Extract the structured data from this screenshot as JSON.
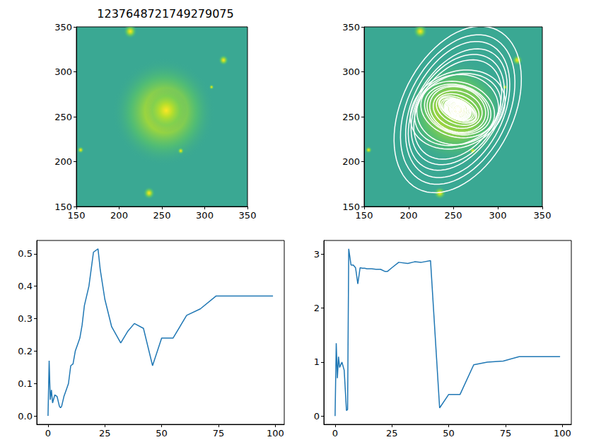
{
  "chart_data": [
    {
      "type": "image",
      "title": "1237648721749279075",
      "xlim": [
        150,
        350
      ],
      "ylim": [
        150,
        350
      ],
      "xticks": [
        150,
        200,
        250,
        300,
        350
      ],
      "yticks": [
        150,
        200,
        250,
        300,
        350
      ],
      "sources": {
        "x": [
          252,
          255,
          213,
          235,
          322,
          155,
          272,
          308
        ],
        "y": [
          255,
          257,
          345,
          165,
          313,
          213,
          212,
          283
        ],
        "radius": [
          60,
          25,
          8,
          7,
          6,
          4,
          4,
          3
        ]
      }
    },
    {
      "type": "image_contours",
      "xlim": [
        150,
        350
      ],
      "ylim": [
        150,
        350
      ],
      "xticks": [
        150,
        200,
        250,
        300,
        350
      ],
      "yticks": [
        150,
        200,
        250,
        300,
        350
      ],
      "sources": {
        "x": [
          252,
          255,
          213,
          235,
          322,
          155,
          272,
          308
        ],
        "y": [
          255,
          257,
          345,
          165,
          313,
          213,
          212,
          283
        ],
        "radius": [
          60,
          25,
          8,
          7,
          6,
          4,
          4,
          3
        ]
      },
      "contours": {
        "x0": 255,
        "y0": 258,
        "sma": [
          0,
          0.5,
          1,
          1.5,
          2,
          3,
          4,
          5,
          5.5,
          6,
          7,
          8,
          9,
          10,
          11,
          12,
          13,
          14,
          15,
          16,
          18,
          20,
          22,
          23,
          25,
          28,
          32,
          35,
          38,
          42,
          46,
          50,
          55,
          61,
          67,
          74,
          81,
          89,
          99
        ],
        "eps": [
          0,
          0.17,
          0.05,
          0.08,
          0.04,
          0.065,
          0.06,
          0.03,
          0.025,
          0.03,
          0.06,
          0.08,
          0.1,
          0.155,
          0.16,
          0.2,
          0.22,
          0.24,
          0.28,
          0.34,
          0.4,
          0.505,
          0.515,
          0.45,
          0.36,
          0.275,
          0.225,
          0.26,
          0.285,
          0.27,
          0.155,
          0.24,
          0.24,
          0.31,
          0.33,
          0.37,
          0.37,
          0.37,
          0.37
        ],
        "pa": [
          0,
          1.35,
          0.7,
          1.1,
          0.9,
          1.0,
          0.85,
          0.1,
          0.12,
          3.1,
          2.8,
          2.8,
          2.75,
          2.45,
          2.75,
          2.74,
          2.74,
          2.73,
          2.73,
          2.73,
          2.72,
          2.72,
          2.68,
          2.68,
          2.75,
          2.85,
          2.83,
          2.86,
          2.85,
          2.88,
          0.15,
          0.4,
          0.4,
          0.95,
          1.0,
          1.02,
          1.1,
          1.1,
          1.1
        ]
      }
    },
    {
      "type": "line",
      "color": "#1f77b4",
      "x": [
        0,
        0.5,
        1,
        1.5,
        2,
        3,
        4,
        5,
        5.5,
        6,
        7,
        8,
        9,
        10,
        11,
        12,
        13,
        14,
        15,
        16,
        18,
        20,
        22,
        23,
        25,
        28,
        32,
        35,
        38,
        42,
        46,
        50,
        55,
        61,
        67,
        74,
        81,
        89,
        99
      ],
      "values": [
        0,
        0.17,
        0.05,
        0.08,
        0.04,
        0.065,
        0.06,
        0.03,
        0.025,
        0.03,
        0.06,
        0.08,
        0.1,
        0.155,
        0.16,
        0.2,
        0.22,
        0.24,
        0.28,
        0.34,
        0.4,
        0.505,
        0.515,
        0.45,
        0.36,
        0.275,
        0.225,
        0.26,
        0.285,
        0.27,
        0.155,
        0.24,
        0.24,
        0.31,
        0.33,
        0.37,
        0.37,
        0.37,
        0.37
      ],
      "xlim": [
        -4.95,
        103.95
      ],
      "ylim": [
        -0.026,
        0.541
      ],
      "xticks": [
        0,
        25,
        50,
        75,
        100
      ],
      "yticks": [
        {
          "value": 0,
          "label": "0.0"
        },
        0.1,
        0.2,
        0.3,
        0.4,
        0.5
      ]
    },
    {
      "type": "line",
      "color": "#1f77b4",
      "x": [
        0,
        0.5,
        1,
        1.5,
        2,
        3,
        4,
        5,
        5.5,
        6,
        7,
        8,
        9,
        10,
        11,
        12,
        13,
        14,
        15,
        16,
        18,
        20,
        22,
        23,
        25,
        28,
        32,
        35,
        38,
        42,
        46,
        50,
        55,
        61,
        67,
        74,
        81,
        89,
        99
      ],
      "values": [
        0,
        1.35,
        0.7,
        1.1,
        0.9,
        1.0,
        0.85,
        0.1,
        0.12,
        3.1,
        2.8,
        2.8,
        2.75,
        2.45,
        2.75,
        2.74,
        2.74,
        2.73,
        2.73,
        2.73,
        2.72,
        2.72,
        2.68,
        2.68,
        2.75,
        2.85,
        2.83,
        2.86,
        2.85,
        2.88,
        0.15,
        0.4,
        0.4,
        0.95,
        1.0,
        1.02,
        1.1,
        1.1,
        1.1
      ],
      "xlim": [
        -4.95,
        103.95
      ],
      "ylim": [
        -0.155,
        3.255
      ],
      "xticks": [
        0,
        25,
        50,
        75,
        100
      ],
      "yticks": [
        0,
        1,
        2,
        3
      ]
    }
  ]
}
